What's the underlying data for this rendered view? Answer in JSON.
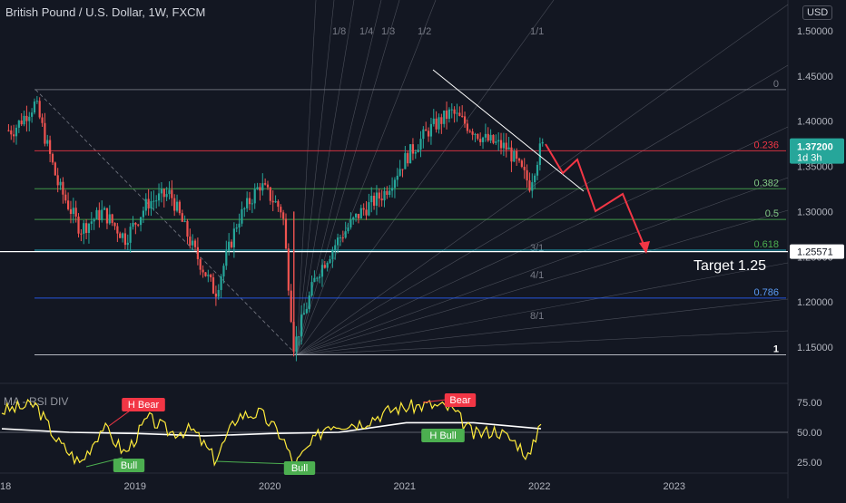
{
  "header": {
    "title": "British Pound / U.S. Dollar, 1W, FXCM",
    "currency": "USD"
  },
  "chart_data": [
    {
      "type": "line",
      "title": "British Pound / U.S. Dollar, 1W, FXCM",
      "x_ticks": [
        "18",
        "2019",
        "2020",
        "2021",
        "2022",
        "2023"
      ],
      "y_ticks": [
        "1.50000",
        "1.45000",
        "1.40000",
        "1.35000",
        "1.30000",
        "1.25000",
        "1.20000",
        "1.15000"
      ],
      "ylim": [
        1.14,
        1.515
      ],
      "price_series": {
        "name": "",
        "x": [
          "2018-02",
          "2018-04",
          "2018-06",
          "2018-08",
          "2018-10",
          "2018-12",
          "2019-02",
          "2019-04",
          "2019-06",
          "2019-08",
          "2019-10",
          "2019-12",
          "2020-02",
          "2020-03",
          "2020-05",
          "2020-07",
          "2020-09",
          "2020-11",
          "2021-01",
          "2021-03",
          "2021-05",
          "2021-06",
          "2021-08",
          "2021-10",
          "2021-12",
          "2022-01"
        ],
        "y": [
          1.39,
          1.42,
          1.33,
          1.28,
          1.3,
          1.27,
          1.31,
          1.32,
          1.26,
          1.21,
          1.29,
          1.33,
          1.3,
          1.15,
          1.23,
          1.27,
          1.3,
          1.32,
          1.36,
          1.39,
          1.41,
          1.4,
          1.38,
          1.37,
          1.33,
          1.372
        ]
      },
      "fibonacci_levels": [
        {
          "label": "0",
          "value": 1.435
        },
        {
          "label": "0.236",
          "value": 1.3672
        },
        {
          "label": "0.382",
          "value": 1.3252
        },
        {
          "label": "0.5",
          "value": 1.2913
        },
        {
          "label": "0.618",
          "value": 1.2573
        },
        {
          "label": "0.786",
          "value": 1.2043
        },
        {
          "label": "1",
          "value": 1.1415
        }
      ],
      "fan_labels": [
        "1/8",
        "1/4",
        "1/3",
        "1/2",
        "1/1",
        "3/1",
        "4/1",
        "8/1"
      ],
      "price_labels": {
        "current": "1.37200",
        "countdown": "1d 3h",
        "target_level": "1.25571"
      },
      "annotation": "Target 1.25",
      "colors": {
        "background": "#131722",
        "up": "#26a69a",
        "down": "#ef5350",
        "projection": "#f23645",
        "level_red": "#f23645",
        "level_green": "#4caf50",
        "level_blue": "#2962ff"
      }
    },
    {
      "type": "line",
      "title": "MA - RSI DIV",
      "y_ticks": [
        "75.00",
        "50.00",
        "25.00"
      ],
      "ylim": [
        15,
        87
      ],
      "rsi": {
        "name": "",
        "x": [
          "2018-01",
          "2018-04",
          "2018-06",
          "2018-08",
          "2018-10",
          "2018-12",
          "2019-02",
          "2019-04",
          "2019-06",
          "2019-08",
          "2019-10",
          "2019-12",
          "2020-02",
          "2020-03",
          "2020-06",
          "2020-09",
          "2020-12",
          "2021-03",
          "2021-05",
          "2021-07",
          "2021-09",
          "2021-11",
          "2021-12",
          "2022-01"
        ],
        "y": [
          68,
          73,
          42,
          24,
          55,
          32,
          62,
          50,
          52,
          27,
          64,
          66,
          46,
          22,
          57,
          58,
          70,
          73,
          70,
          48,
          52,
          40,
          28,
          62
        ]
      },
      "ma": {
        "name": "",
        "x": [
          "2018-01",
          "2018-07",
          "2019-01",
          "2019-07",
          "2020-01",
          "2020-07",
          "2021-01",
          "2021-07",
          "2022-01"
        ],
        "y": [
          53,
          50,
          49,
          47,
          49,
          50,
          58,
          58,
          53
        ]
      },
      "divergence_labels": [
        {
          "text": "H Bear",
          "kind": "bear"
        },
        {
          "text": "Bull",
          "kind": "bull"
        },
        {
          "text": "Bull",
          "kind": "bull"
        },
        {
          "text": "Bear",
          "kind": "bear"
        },
        {
          "text": "H Bull",
          "kind": "bull"
        }
      ]
    }
  ]
}
